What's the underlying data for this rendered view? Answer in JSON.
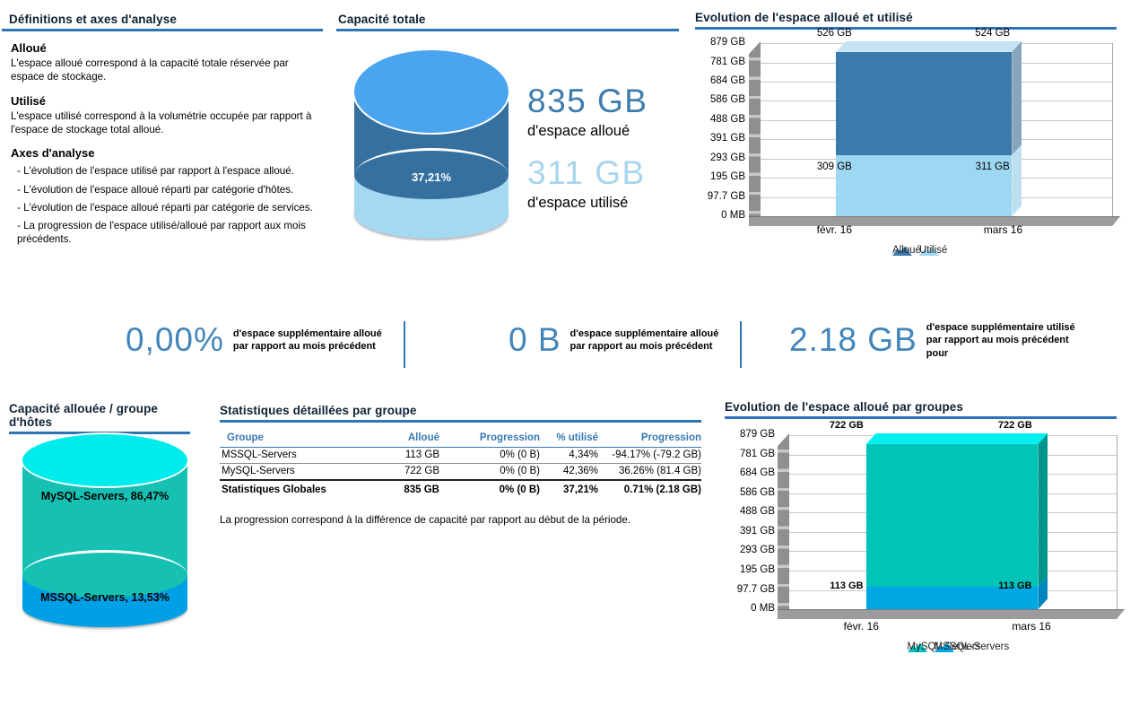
{
  "panels": {
    "definitions": {
      "title": "Définitions et axes d'analyse",
      "sections": [
        {
          "heading": "Alloué",
          "body": "L'espace alloué correspond à la capacité totale réservée par espace de stockage."
        },
        {
          "heading": "Utilisé",
          "body": "L'espace utilisé correspond à la volumétrie occupée par rapport à l'espace de stockage total alloué."
        },
        {
          "heading": "Axes d'analyse",
          "bullets": [
            "- L'évolution de l'espace utilisé par rapport à l'espace alloué.",
            "- L'évolution de l'espace alloué réparti par catégorie d'hôtes.",
            "- L'évolution de l'espace alloué réparti par catégorie de services.",
            "- La progression de l'espace utilisé/alloué par rapport aux mois précédents."
          ]
        }
      ]
    },
    "total_capacity": {
      "title": "Capacité totale",
      "allocated_value": "835 GB",
      "allocated_caption": "d'espace alloué",
      "used_value": "311 GB",
      "used_caption": "d'espace utilisé",
      "used_percent_label": "37,21%"
    },
    "kpis": [
      {
        "value": "0,00%",
        "caption": "d'espace supplémentaire alloué\npar rapport au mois précédent"
      },
      {
        "value": "0 B",
        "caption": "d'espace supplémentaire alloué\npar rapport au mois précédent"
      },
      {
        "value": "2.18 GB",
        "caption": "d'espace supplémentaire utilisé\npar rapport au mois précédent\npour"
      }
    ],
    "group_capacity": {
      "title": "Capacité allouée / groupe d'hôtes",
      "segments": [
        {
          "label": "MySQL-Servers, 86,47%",
          "percent": 86.47
        },
        {
          "label": "MSSQL-Servers, 13,53%",
          "percent": 13.53
        }
      ]
    },
    "stats_table": {
      "title": "Statistiques détaillées par groupe",
      "columns": [
        "Groupe",
        "Alloué",
        "Progression",
        "% utilisé",
        "Progression"
      ],
      "rows": [
        [
          "MSSQL-Servers",
          "113 GB",
          "0% (0 B)",
          "4,34%",
          "-94.17% (-79.2 GB)"
        ],
        [
          "MySQL-Servers",
          "722 GB",
          "0% (0 B)",
          "42,36%",
          "36.26% (81.4 GB)"
        ]
      ],
      "total_row": [
        "Statistiques Globales",
        "835 GB",
        "0% (0 B)",
        "37,21%",
        "0.71% (2.18 GB)"
      ],
      "footnote": "La progression correspond à la différence de capacité par rapport au début de la période."
    }
  },
  "chart_data": [
    {
      "id": "total-cylinder",
      "type": "pie",
      "style": "cylinder-3d",
      "title": "Capacité totale",
      "labels": [
        "d'espace alloué",
        "d'espace utilisé"
      ],
      "values_gb": [
        835,
        311
      ],
      "used_percent": 37.21,
      "used_percent_label": "37,21%",
      "colors": {
        "top": "#4aa4ee",
        "body": "#35709f",
        "used_band": "#a5d8f1"
      }
    },
    {
      "id": "evolution-alloue-utilise",
      "type": "bar",
      "stacked": true,
      "title": "Evolution de l'espace alloué et utilisé",
      "categories": [
        "févr. 16",
        "mars 16"
      ],
      "series": [
        {
          "name": "Utilisé",
          "color": "#9ed7f2",
          "side_color": "#bedfef",
          "values": [
            309,
            311
          ],
          "labels": [
            "309 GB",
            "311 GB"
          ]
        },
        {
          "name": "Alloué",
          "color": "#3d7aac",
          "side_color": "#87a5bb",
          "values": [
            526,
            524
          ],
          "labels": [
            "526 GB",
            "524 GB"
          ]
        }
      ],
      "top_face_color": "#c6e3f6",
      "ylim": [
        0,
        879
      ],
      "yticks": [
        {
          "v": 879,
          "label": "879 GB"
        },
        {
          "v": 781,
          "label": "781 GB"
        },
        {
          "v": 684,
          "label": "684 GB"
        },
        {
          "v": 586,
          "label": "586 GB"
        },
        {
          "v": 488,
          "label": "488 GB"
        },
        {
          "v": 391,
          "label": "391 GB"
        },
        {
          "v": 293,
          "label": "293 GB"
        },
        {
          "v": 195,
          "label": "195 GB"
        },
        {
          "v": 97.7,
          "label": "97.7 GB"
        },
        {
          "v": 0,
          "label": "0 MB"
        }
      ],
      "legend": [
        {
          "label": "Alloué",
          "color": "#3d7aac"
        },
        {
          "label": "Utilisé",
          "color": "#9ed7f2"
        }
      ]
    },
    {
      "id": "group-cylinder",
      "type": "pie",
      "style": "cylinder-3d",
      "title": "Capacité allouée / groupe d'hôtes",
      "labels": [
        "MySQL-Servers",
        "MSSQL-Servers"
      ],
      "values_percent": [
        86.47,
        13.53
      ],
      "colors": {
        "top": "#00ecec",
        "body": "#16c0b3",
        "band": "#00a0e6"
      }
    },
    {
      "id": "evolution-alloue-groupes",
      "type": "bar",
      "stacked": true,
      "title": "Evolution de l'espace alloué par groupes",
      "categories": [
        "févr. 16",
        "mars 16"
      ],
      "series": [
        {
          "name": "MSSQL-Servers",
          "color": "#00a7e3",
          "side_color": "#0086bf",
          "values": [
            113,
            113
          ],
          "labels": [
            "113 GB",
            "113 GB"
          ]
        },
        {
          "name": "MySQL-Servers",
          "color": "#00c4b7",
          "side_color": "#00958d",
          "values": [
            722,
            722
          ],
          "labels": [
            "722 GB",
            "722 GB"
          ]
        }
      ],
      "top_face_color": "#00efef",
      "ylim": [
        0,
        879
      ],
      "yticks": [
        {
          "v": 879,
          "label": "879 GB"
        },
        {
          "v": 781,
          "label": "781 GB"
        },
        {
          "v": 684,
          "label": "684 GB"
        },
        {
          "v": 586,
          "label": "586 GB"
        },
        {
          "v": 488,
          "label": "488 GB"
        },
        {
          "v": 391,
          "label": "391 GB"
        },
        {
          "v": 293,
          "label": "293 GB"
        },
        {
          "v": 195,
          "label": "195 GB"
        },
        {
          "v": 97.7,
          "label": "97.7 GB"
        },
        {
          "v": 0,
          "label": "0 MB"
        }
      ],
      "legend": [
        {
          "label": "MySQL-Servers",
          "color": "#00c4b7"
        },
        {
          "label": "MSSQL-Servers",
          "color": "#00a7e3"
        }
      ]
    }
  ]
}
